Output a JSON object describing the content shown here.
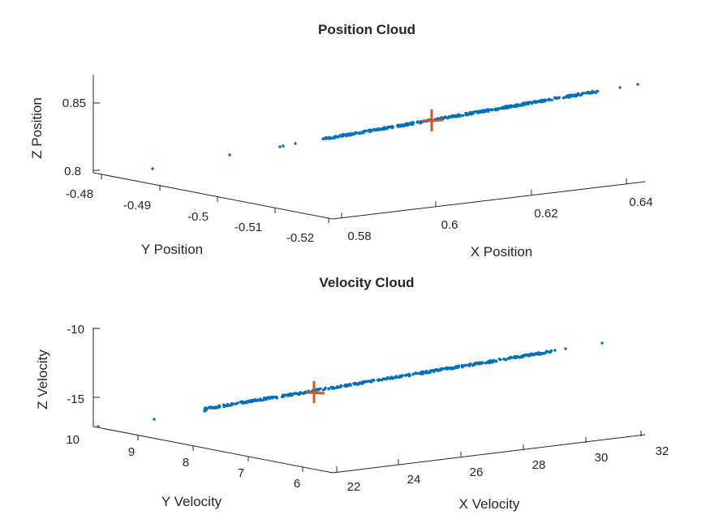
{
  "chart_data": [
    {
      "type": "scatter",
      "title": "Position Cloud",
      "xlabel": "X Position",
      "ylabel": "Y Position",
      "zlabel": "Z Position",
      "xlim": [
        0.58,
        0.645
      ],
      "ylim": [
        -0.522,
        -0.475
      ],
      "zlim": [
        0.795,
        0.87
      ],
      "xticks": [
        "0.58",
        "0.6",
        "0.62",
        "0.64"
      ],
      "yticks": [
        "-0.48",
        "-0.49",
        "-0.5",
        "-0.51",
        "-0.52"
      ],
      "zticks": [
        "0.8",
        "0.85"
      ],
      "grid": false,
      "series": [
        {
          "kind": "cloud",
          "color": "#0072BD",
          "x_range": [
            0.585,
            0.642
          ],
          "z_range": [
            0.805,
            0.86
          ]
        },
        {
          "kind": "mean-marker",
          "color": "#D95319",
          "x": 0.607,
          "y": -0.5,
          "z": 0.838
        }
      ]
    },
    {
      "type": "scatter",
      "title": "Velocity Cloud",
      "xlabel": "X Velocity",
      "ylabel": "Y Velocity",
      "zlabel": "Z Velocity",
      "xlim": [
        22,
        32
      ],
      "ylim": [
        5.8,
        10
      ],
      "zlim": [
        -17,
        -10
      ],
      "xticks": [
        "22",
        "24",
        "26",
        "28",
        "30",
        "32"
      ],
      "yticks": [
        "9",
        "8",
        "7",
        "6"
      ],
      "zticks": [
        "-10",
        "-15"
      ],
      "ztick_extra": "10",
      "grid": false,
      "series": [
        {
          "kind": "cloud",
          "color": "#0072BD",
          "x_range": [
            22.5,
            31.8
          ],
          "z_range": [
            -16.8,
            -11.0
          ]
        },
        {
          "kind": "mean-marker",
          "color": "#D95319",
          "x": 24.5,
          "y": 8.0,
          "z": -14.5
        }
      ]
    }
  ]
}
